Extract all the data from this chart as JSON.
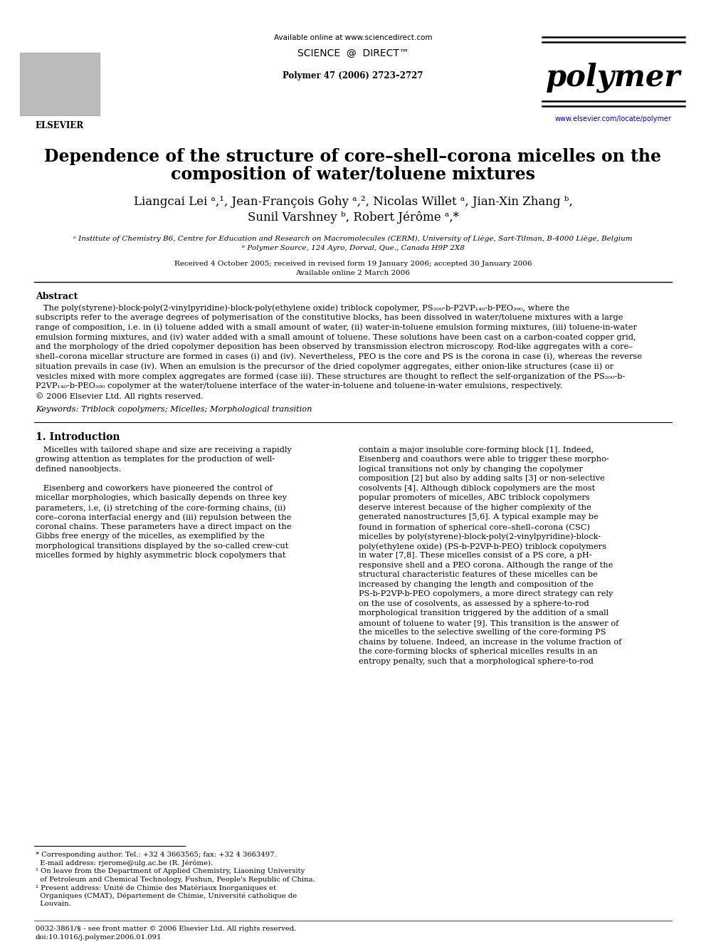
{
  "bg_color": "#ffffff",
  "available_online": "Available online at www.sciencedirect.com",
  "sciencedirect": "SCIENCE  @  DIRECT",
  "journal_info": "Polymer 47 (2006) 2723–2727",
  "journal_name": "polymer",
  "journal_url": "www.elsevier.com/locate/polymer",
  "title_line1": "Dependence of the structure of core–shell–corona micelles on the",
  "title_line2": "composition of water/toluene mixtures",
  "authors_line1": "Liangcai Lei ᵃ,¹, Jean-François Gohy ᵃ,², Nicolas Willet ᵃ, Jian-Xin Zhang ᵇ,",
  "authors_line2": "Sunil Varshney ᵇ, Robert Jérôme ᵃ,*",
  "affil_a": "ᵃ Institute of Chemistry B6, Centre for Education and Research on Macromolecules (CERM), University of Liège, Sart-Tilman, B-4000 Liège, Belgium",
  "affil_b": "ᵇ Polymer Source, 124 Ayro, Dorval, Que., Canada H9P 2X8",
  "received": "Received 4 October 2005; received in revised form 19 January 2006; accepted 30 January 2006",
  "available": "Available online 2 March 2006",
  "abstract_title": "Abstract",
  "abstract_lines": [
    "   The poly(styrene)-block-poly(2-vinylpyridine)-block-poly(ethylene oxide) triblock copolymer, PS₂₀₀-b-P2VP₁₄₀-b-PEO₃₉₀, where the",
    "subscripts refer to the average degrees of polymerisation of the constitutive blocks, has been dissolved in water/toluene mixtures with a large",
    "range of composition, i.e. in (i) toluene added with a small amount of water, (ii) water-in-toluene emulsion forming mixtures, (iii) toluene-in-water",
    "emulsion forming mixtures, and (iv) water added with a small amount of toluene. These solutions have been cast on a carbon-coated copper grid,",
    "and the morphology of the dried copolymer deposition has been observed by transmission electron microscopy. Rod-like aggregates with a core–",
    "shell–corona micellar structure are formed in cases (i) and (iv). Nevertheless, PEO is the core and PS is the corona in case (i), whereas the reverse",
    "situation prevails in case (iv). When an emulsion is the precursor of the dried copolymer aggregates, either onion-like structures (case ii) or",
    "vesicles mixed with more complex aggregates are formed (case iii). These structures are thought to reflect the self-organization of the PS₂₀₀-b-",
    "P2VP₁₄₀-b-PEO₃₉₀ copolymer at the water/toluene interface of the water-in-toluene and toluene-in-water emulsions, respectively.",
    "© 2006 Elsevier Ltd. All rights reserved."
  ],
  "keywords": "Keywords: Triblock copolymers; Micelles; Morphological transition",
  "section1_title": "1. Introduction",
  "col1_lines": [
    "   Micelles with tailored shape and size are receiving a rapidly",
    "growing attention as templates for the production of well-",
    "defined nanoobjects.",
    "",
    "   Eisenberg and coworkers have pioneered the control of",
    "micellar morphologies, which basically depends on three key",
    "parameters, i.e, (i) stretching of the core-forming chains, (ii)",
    "core–corona interfacial energy and (iii) repulsion between the",
    "coronal chains. These parameters have a direct impact on the",
    "Gibbs free energy of the micelles, as exemplified by the",
    "morphological transitions displayed by the so-called crew-cut",
    "micelles formed by highly asymmetric block copolymers that"
  ],
  "col2_lines": [
    "contain a major insoluble core-forming block [1]. Indeed,",
    "Eisenberg and coauthors were able to trigger these morpho-",
    "logical transitions not only by changing the copolymer",
    "composition [2] but also by adding salts [3] or non-selective",
    "cosolvents [4]. Although diblock copolymers are the most",
    "popular promoters of micelles, ABC triblock copolymers",
    "deserve interest because of the higher complexity of the",
    "generated nanostructures [5,6]. A typical example may be",
    "found in formation of spherical core–shell–corona (CSC)",
    "micelles by poly(styrene)-block-poly(2-vinylpyridine)-block-",
    "poly(ethylene oxide) (PS-b-P2VP-b-PEO) triblock copolymers",
    "in water [7,8]. These micelles consist of a PS core, a pH-",
    "responsive shell and a PEO corona. Although the range of the",
    "structural characteristic features of these micelles can be",
    "increased by changing the length and composition of the",
    "PS-b-P2VP-b-PEO copolymers, a more direct strategy can rely",
    "on the use of cosolvents, as assessed by a sphere-to-rod",
    "morphological transition triggered by the addition of a small",
    "amount of toluene to water [9]. This transition is the answer of",
    "the micelles to the selective swelling of the core-forming PS",
    "chains by toluene. Indeed, an increase in the volume fraction of",
    "the core-forming blocks of spherical micelles results in an",
    "entropy penalty, such that a morphological sphere-to-rod"
  ],
  "footnote_lines": [
    "* Corresponding author. Tel.: +32 4 3663565; fax: +32 4 3663497.",
    "  E-mail address: rjerome@ulg.ac.be (R. Jérôme).",
    "¹ On leave from the Department of Applied Chemistry, Liaoning University",
    "  of Petroleum and Chemical Technology, Fushun, People's Republic of China.",
    "² Present address: Unité de Chimie des Matériaux Inorganiques et",
    "  Organiques (CMAT), Département de Chimie, Université catholique de",
    "  Louvain."
  ],
  "bottom_line1": "0032-3861/$ - see front matter © 2006 Elsevier Ltd. All rights reserved.",
  "bottom_line2": "doi:10.1016/j.polymer.2006.01.091"
}
